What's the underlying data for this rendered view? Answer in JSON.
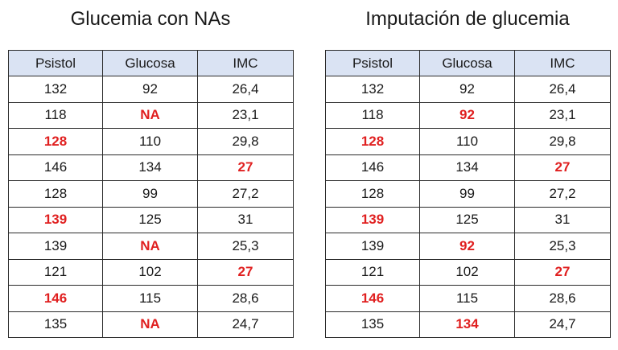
{
  "colors": {
    "header_bg": "#dae3f3",
    "highlight": "#e02020",
    "border": "#2b2b2b"
  },
  "left_table": {
    "title": "Glucemia con NAs",
    "headers": [
      "Psistol",
      "Glucosa",
      "IMC"
    ],
    "rows": [
      [
        {
          "v": "132",
          "hl": false
        },
        {
          "v": "92",
          "hl": false
        },
        {
          "v": "26,4",
          "hl": false
        }
      ],
      [
        {
          "v": "118",
          "hl": false
        },
        {
          "v": "NA",
          "hl": true
        },
        {
          "v": "23,1",
          "hl": false
        }
      ],
      [
        {
          "v": "128",
          "hl": true
        },
        {
          "v": "110",
          "hl": false
        },
        {
          "v": "29,8",
          "hl": false
        }
      ],
      [
        {
          "v": "146",
          "hl": false
        },
        {
          "v": "134",
          "hl": false
        },
        {
          "v": "27",
          "hl": true
        }
      ],
      [
        {
          "v": "128",
          "hl": false
        },
        {
          "v": "99",
          "hl": false
        },
        {
          "v": "27,2",
          "hl": false
        }
      ],
      [
        {
          "v": "139",
          "hl": true
        },
        {
          "v": "125",
          "hl": false
        },
        {
          "v": "31",
          "hl": false
        }
      ],
      [
        {
          "v": "139",
          "hl": false
        },
        {
          "v": "NA",
          "hl": true
        },
        {
          "v": "25,3",
          "hl": false
        }
      ],
      [
        {
          "v": "121",
          "hl": false
        },
        {
          "v": "102",
          "hl": false
        },
        {
          "v": "27",
          "hl": true
        }
      ],
      [
        {
          "v": "146",
          "hl": true
        },
        {
          "v": "115",
          "hl": false
        },
        {
          "v": "28,6",
          "hl": false
        }
      ],
      [
        {
          "v": "135",
          "hl": false
        },
        {
          "v": "NA",
          "hl": true
        },
        {
          "v": "24,7",
          "hl": false
        }
      ]
    ]
  },
  "right_table": {
    "title": "Imputación de glucemia",
    "headers": [
      "Psistol",
      "Glucosa",
      "IMC"
    ],
    "rows": [
      [
        {
          "v": "132",
          "hl": false
        },
        {
          "v": "92",
          "hl": false
        },
        {
          "v": "26,4",
          "hl": false
        }
      ],
      [
        {
          "v": "118",
          "hl": false
        },
        {
          "v": "92",
          "hl": true
        },
        {
          "v": "23,1",
          "hl": false
        }
      ],
      [
        {
          "v": "128",
          "hl": true
        },
        {
          "v": "110",
          "hl": false
        },
        {
          "v": "29,8",
          "hl": false
        }
      ],
      [
        {
          "v": "146",
          "hl": false
        },
        {
          "v": "134",
          "hl": false
        },
        {
          "v": "27",
          "hl": true
        }
      ],
      [
        {
          "v": "128",
          "hl": false
        },
        {
          "v": "99",
          "hl": false
        },
        {
          "v": "27,2",
          "hl": false
        }
      ],
      [
        {
          "v": "139",
          "hl": true
        },
        {
          "v": "125",
          "hl": false
        },
        {
          "v": "31",
          "hl": false
        }
      ],
      [
        {
          "v": "139",
          "hl": false
        },
        {
          "v": "92",
          "hl": true
        },
        {
          "v": "25,3",
          "hl": false
        }
      ],
      [
        {
          "v": "121",
          "hl": false
        },
        {
          "v": "102",
          "hl": false
        },
        {
          "v": "27",
          "hl": true
        }
      ],
      [
        {
          "v": "146",
          "hl": true
        },
        {
          "v": "115",
          "hl": false
        },
        {
          "v": "28,6",
          "hl": false
        }
      ],
      [
        {
          "v": "135",
          "hl": false
        },
        {
          "v": "134",
          "hl": true
        },
        {
          "v": "24,7",
          "hl": false
        }
      ]
    ]
  }
}
